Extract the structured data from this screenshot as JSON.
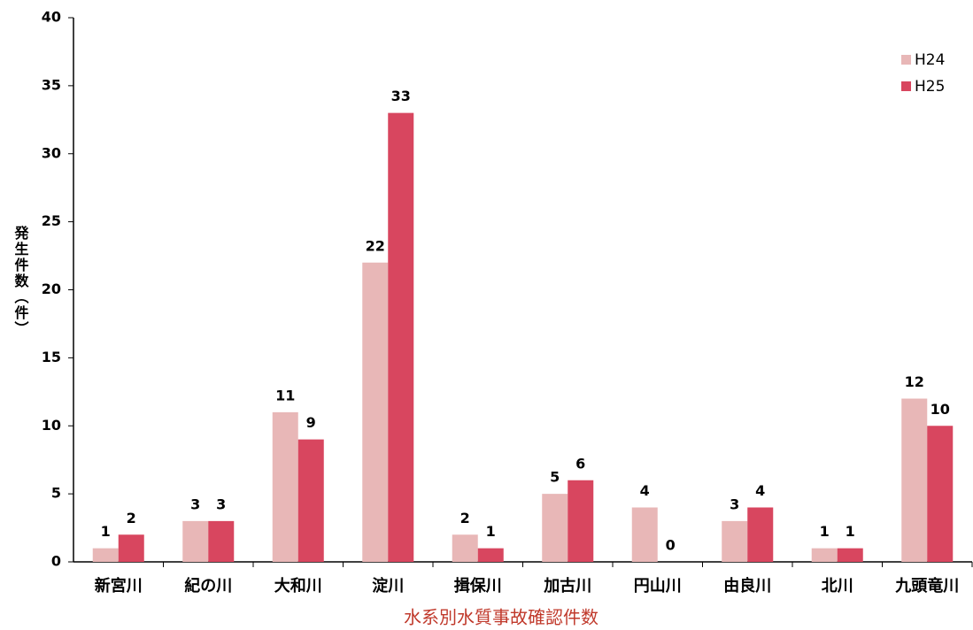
{
  "chart_data": {
    "type": "bar",
    "title": "水系別水質事故確認件数",
    "y_label": "発生件数（件）",
    "categories": [
      "新宮川",
      "紀の川",
      "大和川",
      "淀川",
      "揖保川",
      "加古川",
      "円山川",
      "由良川",
      "北川",
      "九頭竜川"
    ],
    "series": [
      {
        "name": "H24",
        "color": "#e8b7b7",
        "values": [
          1,
          3,
          11,
          22,
          2,
          5,
          4,
          3,
          1,
          12
        ]
      },
      {
        "name": "H25",
        "color": "#d8465f",
        "values": [
          2,
          3,
          9,
          33,
          1,
          6,
          0,
          4,
          1,
          10
        ]
      }
    ],
    "ylim": [
      0,
      40
    ],
    "yticks": [
      0,
      5,
      10,
      15,
      20,
      25,
      30,
      35,
      40
    ],
    "grid": false,
    "legend": "upper right"
  }
}
